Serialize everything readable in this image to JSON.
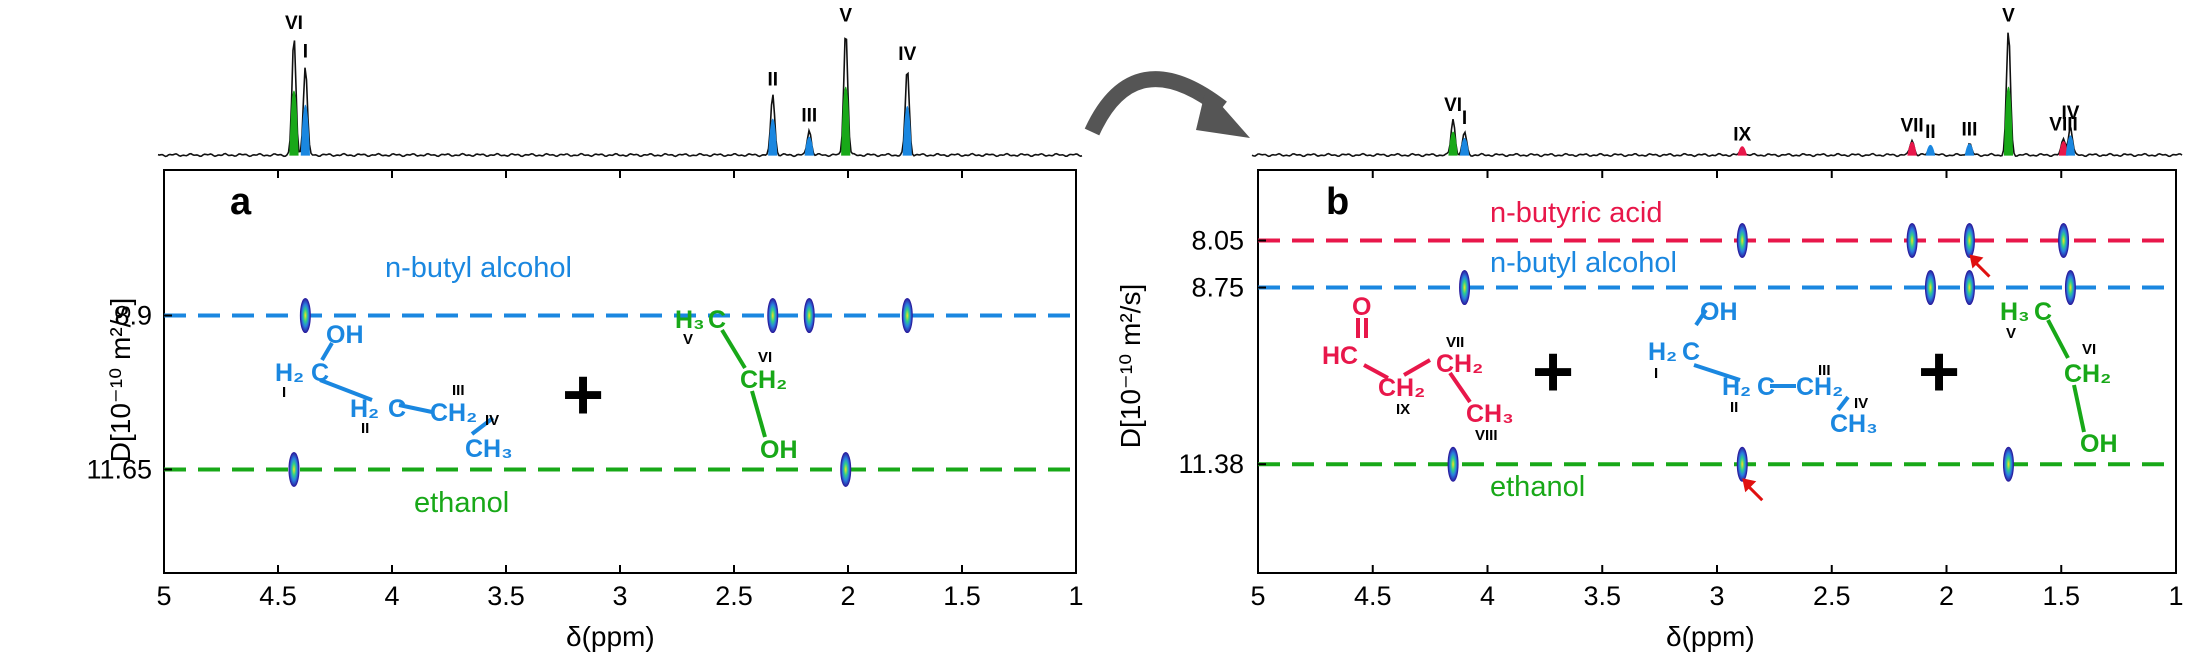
{
  "colors": {
    "butanol": "#1a87e0",
    "ethanol": "#18a818",
    "butyric": "#e8174a",
    "spectrum": "#111111",
    "arrow": "#e01010",
    "curve_arrow": "#555555"
  },
  "chart_data": [
    {
      "panel": "a",
      "type": "scatter",
      "subtype": "DOSY 2D NMR",
      "xlabel": "δ(ppm)",
      "ylabel": "D[10⁻¹⁰ m²/s]",
      "xlim": [
        5,
        1
      ],
      "ylim": [
        13.5,
        6.3
      ],
      "x_ticks": [
        5,
        4.5,
        4,
        3.5,
        3,
        2.5,
        2,
        1.5,
        1
      ],
      "y_ticks": [
        8.9,
        11.65
      ],
      "y_tick_labels": [
        "8.9",
        "11.65"
      ],
      "diffusion_lines": [
        {
          "name": "n-butyl alcohol",
          "D": 8.9,
          "color": "#1a87e0"
        },
        {
          "name": "ethanol",
          "D": 11.65,
          "color": "#18a818"
        }
      ],
      "spectrum_peaks": [
        {
          "label": "VI",
          "ppm": 4.43,
          "height": 0.92,
          "color": "#18a818"
        },
        {
          "label": "I",
          "ppm": 4.38,
          "height": 0.7,
          "color": "#1a87e0"
        },
        {
          "label": "II",
          "ppm": 2.33,
          "height": 0.48,
          "color": "#1a87e0"
        },
        {
          "label": "III",
          "ppm": 2.17,
          "height": 0.2,
          "color": "#1a87e0"
        },
        {
          "label": "V",
          "ppm": 2.01,
          "height": 0.98,
          "color": "#18a818"
        },
        {
          "label": "IV",
          "ppm": 1.74,
          "height": 0.68,
          "color": "#1a87e0"
        }
      ],
      "spots": [
        {
          "ppm": 4.38,
          "D": 8.9
        },
        {
          "ppm": 2.33,
          "D": 8.9
        },
        {
          "ppm": 2.17,
          "D": 8.9
        },
        {
          "ppm": 1.74,
          "D": 8.9
        },
        {
          "ppm": 4.43,
          "D": 11.65
        },
        {
          "ppm": 2.01,
          "D": 11.65
        }
      ]
    },
    {
      "panel": "b",
      "type": "scatter",
      "subtype": "DOSY 2D NMR",
      "xlabel": "δ(ppm)",
      "ylabel": "D[10⁻¹⁰ m²/s]",
      "xlim": [
        5,
        1
      ],
      "ylim": [
        13.0,
        7.0
      ],
      "x_ticks": [
        5,
        4.5,
        4,
        3.5,
        3,
        2.5,
        2,
        1.5,
        1
      ],
      "y_ticks": [
        8.05,
        8.75,
        11.38
      ],
      "y_tick_labels": [
        "8.05",
        "8.75",
        "11.38"
      ],
      "diffusion_lines": [
        {
          "name": "n-butyric acid",
          "D": 8.05,
          "color": "#e8174a"
        },
        {
          "name": "n-butyl alcohol",
          "D": 8.75,
          "color": "#1a87e0"
        },
        {
          "name": "ethanol",
          "D": 11.38,
          "color": "#18a818"
        }
      ],
      "spectrum_peaks": [
        {
          "label": "VI",
          "ppm": 4.15,
          "height": 0.28,
          "color": "#18a818"
        },
        {
          "label": "I",
          "ppm": 4.1,
          "height": 0.18,
          "color": "#1a87e0"
        },
        {
          "label": "IX",
          "ppm": 2.89,
          "height": 0.05,
          "color": "#e8174a"
        },
        {
          "label": "VII",
          "ppm": 2.15,
          "height": 0.12,
          "color": "#e8174a"
        },
        {
          "label": "II",
          "ppm": 2.07,
          "height": 0.07,
          "color": "#1a87e0"
        },
        {
          "label": "III",
          "ppm": 1.9,
          "height": 0.09,
          "color": "#1a87e0"
        },
        {
          "label": "V",
          "ppm": 1.73,
          "height": 0.98,
          "color": "#18a818"
        },
        {
          "label": "VIII",
          "ppm": 1.49,
          "height": 0.13,
          "color": "#e8174a"
        },
        {
          "label": "IV",
          "ppm": 1.46,
          "height": 0.22,
          "color": "#1a87e0"
        }
      ],
      "spots": [
        {
          "ppm": 2.89,
          "D": 8.05
        },
        {
          "ppm": 2.15,
          "D": 8.05
        },
        {
          "ppm": 1.9,
          "D": 8.05
        },
        {
          "ppm": 1.49,
          "D": 8.05
        },
        {
          "ppm": 4.1,
          "D": 8.75
        },
        {
          "ppm": 2.07,
          "D": 8.75
        },
        {
          "ppm": 1.9,
          "D": 8.75
        },
        {
          "ppm": 1.46,
          "D": 8.75
        },
        {
          "ppm": 4.15,
          "D": 11.38
        },
        {
          "ppm": 2.89,
          "D": 11.38
        },
        {
          "ppm": 1.73,
          "D": 11.38
        }
      ],
      "arrows": [
        {
          "ppm": 1.9,
          "D": 8.05
        },
        {
          "ppm": 2.89,
          "D": 11.38
        }
      ]
    }
  ],
  "molecules": {
    "panel_a": {
      "butanol": {
        "oh": "OH",
        "h2c": "H₂",
        "c": "C",
        "ch2": "CH₂",
        "ch3": "CH₃",
        "r1": "I",
        "r2": "II",
        "r3": "III",
        "r4": "IV"
      },
      "ethanol": {
        "h3": "H₃",
        "c": "C",
        "ch2": "CH₂",
        "oh": "OH",
        "r5": "V",
        "r6": "VI"
      },
      "plus": "+"
    },
    "panel_b": {
      "butyric": {
        "o": "O",
        "hc": "HC",
        "ch2a": "CH₂",
        "ch2b": "CH₂",
        "ch3": "CH₃",
        "r7": "VII",
        "r8": "VIII",
        "r9": "IX"
      },
      "butanol": {
        "oh": "OH",
        "h2c": "H₂",
        "c": "C",
        "h2c2": "H₂",
        "c2": "C",
        "ch2": "CH₂",
        "ch3": "CH₃",
        "r1": "I",
        "r2": "II",
        "r3": "III",
        "r4": "IV"
      },
      "ethanol": {
        "h3": "H₃",
        "c": "C",
        "ch2": "CH₂",
        "oh": "OH",
        "r5": "V",
        "r6": "VI"
      },
      "plus1": "+",
      "plus2": "+"
    }
  }
}
